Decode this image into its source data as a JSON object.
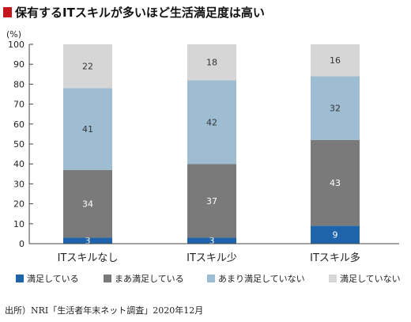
{
  "title": "保有するITスキルが多いほど生活満足度は高い",
  "source": "出所）NRI「生活者年末ネット調査」2020年12月",
  "chart_data": {
    "type": "bar",
    "stacked": true,
    "unit_label": "(%)",
    "ylim": [
      0,
      100
    ],
    "yticks": [
      0,
      10,
      20,
      30,
      40,
      50,
      60,
      70,
      80,
      90,
      100
    ],
    "categories": [
      "ITスキルなし",
      "ITスキル少",
      "ITスキル多"
    ],
    "series": [
      {
        "name": "満足している",
        "color": "#1f63aa",
        "values": [
          3,
          3,
          9
        ]
      },
      {
        "name": "まあ満足している",
        "color": "#7a7a7a",
        "values": [
          34,
          37,
          43
        ]
      },
      {
        "name": "あまり満足していない",
        "color": "#9ebdd3",
        "values": [
          41,
          42,
          32
        ]
      },
      {
        "name": "満足していない",
        "color": "#d6d6d6",
        "values": [
          22,
          18,
          16
        ]
      }
    ],
    "label_colors": [
      "#ffffff",
      "#ffffff",
      "#333333",
      "#333333"
    ],
    "legend_position": "bottom",
    "grid": false
  }
}
